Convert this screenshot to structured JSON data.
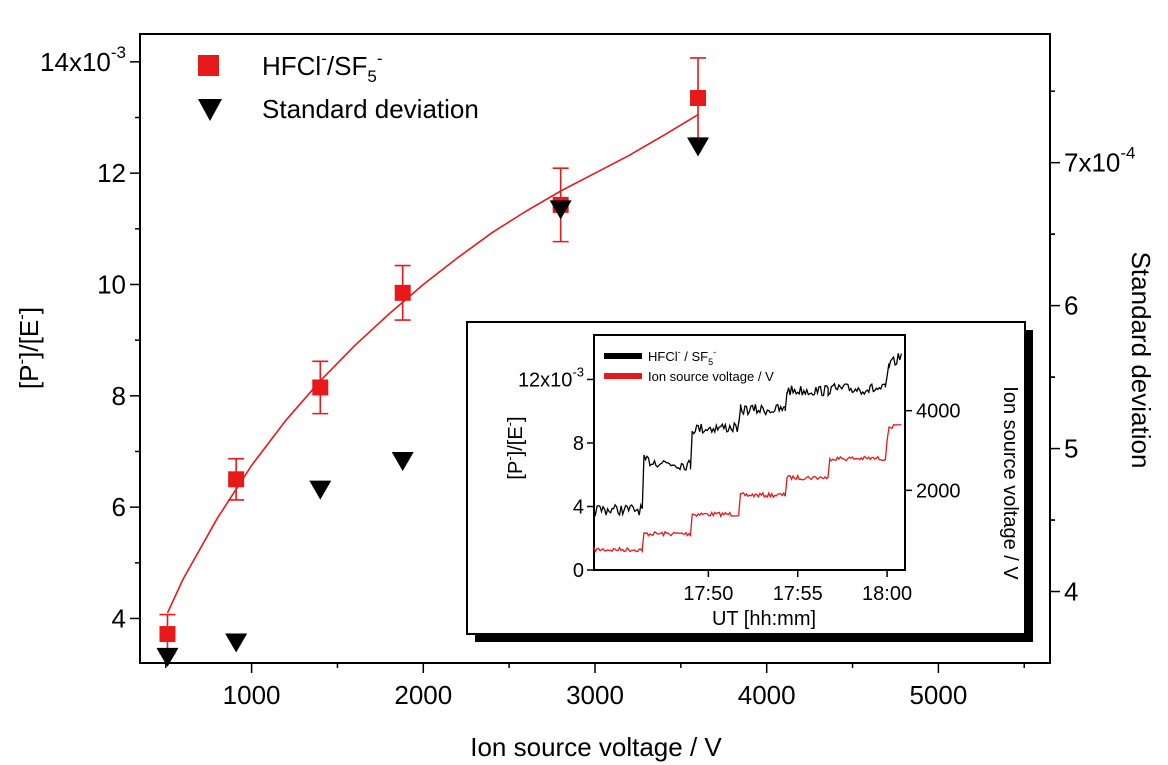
{
  "chart_data": [
    {
      "id": "main",
      "type": "scatter",
      "xlabel": "Ion source voltage / V",
      "ylabel": "[P⁻]/[E⁻]",
      "y2label": "Standard deviation",
      "xlim": [
        350,
        5650
      ],
      "ylim": [
        0.0032,
        0.0145
      ],
      "y2lim": [
        0.00035,
        0.00079
      ],
      "xticks": [
        "1000",
        "2000",
        "3000",
        "4000",
        "5000"
      ],
      "yticks": [
        "4",
        "6",
        "8",
        "10",
        "12",
        "14x10"
      ],
      "ytick_exponent": "-3",
      "y2ticks": [
        "4",
        "5",
        "6",
        "7x10"
      ],
      "y2tick_exponent": "-4",
      "grid": false,
      "legend_position": "top-left",
      "series": [
        {
          "name": "HFCl⁻/SF₅⁻",
          "axis": "left",
          "marker": "square",
          "color": "#e8191b",
          "x": [
            510,
            910,
            1400,
            1880,
            2800,
            3600
          ],
          "y": [
            0.00372,
            0.0065,
            0.00815,
            0.00985,
            0.01143,
            0.01335
          ],
          "yerr": [
            0.00035,
            0.00037,
            0.00047,
            0.00049,
            0.00066,
            0.00072
          ]
        },
        {
          "name": "Standard deviation",
          "axis": "right",
          "marker": "triangle-down",
          "color": "#000000",
          "x": [
            510,
            910,
            1400,
            1880,
            2800,
            3600
          ],
          "y": [
            0.000355,
            0.000365,
            0.000472,
            0.000492,
            0.000668,
            0.000712
          ]
        }
      ],
      "fit": {
        "color": "#e8191b",
        "x": [
          510,
          600,
          800,
          1000,
          1200,
          1400,
          1600,
          1800,
          2000,
          2200,
          2400,
          2600,
          2800,
          3000,
          3200,
          3400,
          3600
        ],
        "y": [
          0.0041,
          0.0047,
          0.0058,
          0.00675,
          0.00756,
          0.00827,
          0.0089,
          0.00947,
          0.01,
          0.01048,
          0.01093,
          0.01132,
          0.01168,
          0.012,
          0.01232,
          0.01268,
          0.01305
        ]
      },
      "legend": [
        {
          "base": "HFCl",
          "sup1": "-",
          "mid": "/SF",
          "sub": "5",
          "sup2": "-"
        },
        {
          "base": "Standard deviation"
        }
      ]
    },
    {
      "id": "inset",
      "type": "line",
      "xlabel": "UT [hh:mm]",
      "ylabel": "[P⁻]/[E⁻]",
      "y2label": "Ion source voltage / V",
      "xlim": [
        17.7267,
        18.0167
      ],
      "ylim": [
        0,
        0.0148
      ],
      "y2lim": [
        0,
        5900
      ],
      "xtick_labels": [
        "17:50",
        "17:55",
        "18:00"
      ],
      "yticks": [
        "0",
        "4",
        "8",
        "12x10"
      ],
      "ytick_exponent": "-3",
      "y2ticks": [
        "2000",
        "4000"
      ],
      "grid": false,
      "legend_position": "top-left",
      "series": [
        {
          "name": "HFCl⁻ / SF₅⁻",
          "color": "#000000",
          "x": [
            17.7267,
            17.7717,
            17.7733,
            17.8167,
            17.8183,
            17.8617,
            17.8633,
            17.905,
            17.9067,
            17.945,
            17.9467,
            17.9983,
            18.0017,
            18.0133
          ],
          "y": [
            0.0038,
            0.0038,
            0.0069,
            0.0066,
            0.0089,
            0.009,
            0.0101,
            0.0101,
            0.0113,
            0.0113,
            0.0114,
            0.0114,
            0.0128,
            0.0135
          ]
        },
        {
          "name": "Ion source voltage / V",
          "color": "#e8191b",
          "x": [
            17.7267,
            17.7717,
            17.7733,
            17.8167,
            17.8183,
            17.8617,
            17.8633,
            17.905,
            17.9067,
            17.945,
            17.9467,
            17.9983,
            18.0017,
            18.0133
          ],
          "y": [
            510,
            510,
            910,
            910,
            1400,
            1400,
            1880,
            1880,
            2320,
            2320,
            2800,
            2800,
            3600,
            3600
          ]
        }
      ],
      "legend": [
        {
          "base": "HFCl",
          "sup1": "-",
          "mid": " / SF",
          "sub": "5",
          "sup2": "-"
        },
        {
          "base": "Ion source voltage / V"
        }
      ]
    }
  ]
}
